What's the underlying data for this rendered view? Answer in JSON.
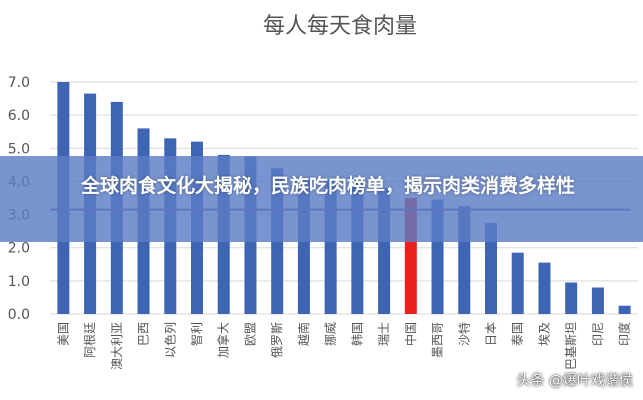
{
  "chart_data": {
    "type": "bar",
    "title": "每人每天食肉量",
    "categories": [
      "美国",
      "阿根廷",
      "澳大利亚",
      "巴西",
      "以色列",
      "智利",
      "加拿大",
      "欧盟",
      "俄罗斯",
      "越南",
      "挪威",
      "韩国",
      "瑞士",
      "中国",
      "墨西哥",
      "沙特",
      "日本",
      "泰国",
      "埃及",
      "巴基斯坦",
      "印尼",
      "印度"
    ],
    "values": [
      7.0,
      6.65,
      6.4,
      5.6,
      5.3,
      5.2,
      4.8,
      4.75,
      4.4,
      4.1,
      4.05,
      3.95,
      3.8,
      3.5,
      3.45,
      3.25,
      2.75,
      1.85,
      1.55,
      0.95,
      0.8,
      0.25
    ],
    "highlight_category": "中国",
    "reference_line": 3.15,
    "yticks": [
      "0.0",
      "1.0",
      "2.0",
      "3.0",
      "4.0",
      "5.0",
      "6.0",
      "7.0"
    ],
    "ylim": [
      0,
      7.0
    ],
    "grid": true,
    "colors": {
      "bar": "#3e64b4",
      "highlight": "#e8201e",
      "reference_line": "#6b5a8e",
      "grid": "#d9d9d9"
    }
  },
  "banner": {
    "text": "全球肉食文化大揭秘，民族吃肉榜单，揭示肉类消费多样性"
  },
  "watermark": {
    "text": "头条 @爆叶戏谐侯"
  }
}
